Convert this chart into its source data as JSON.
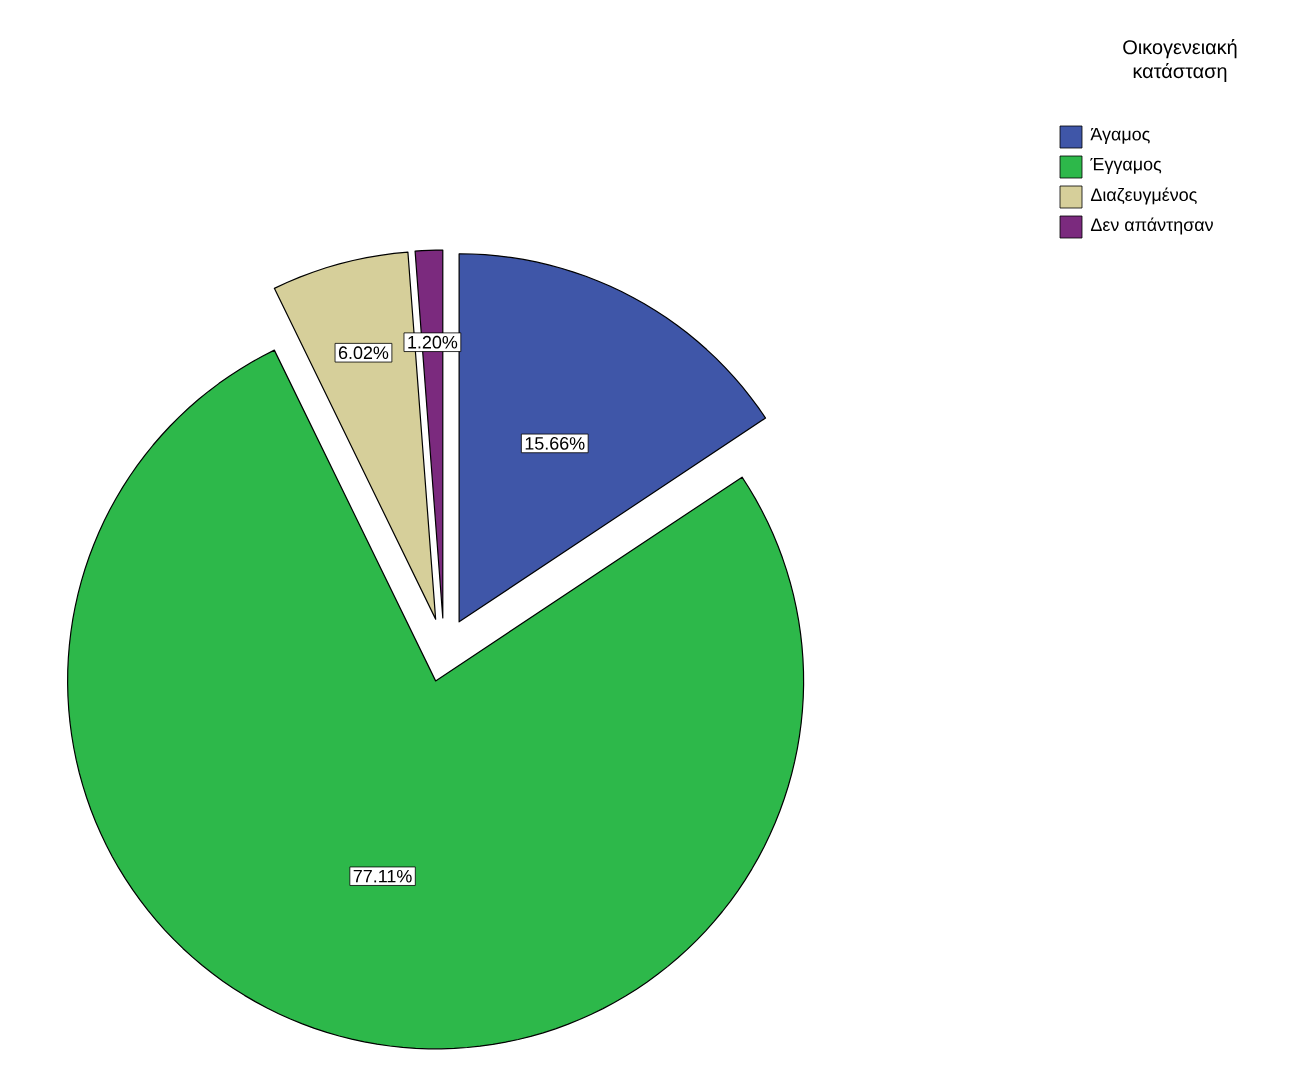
{
  "chart_data": {
    "type": "pie",
    "legend_title": "Οικογενειακή κατάσταση",
    "categories": [
      "Άγαμος",
      "Έγγαμος",
      "Διαζευγμένος",
      "Δεν απάντησαν"
    ],
    "values": [
      15.66,
      77.11,
      6.02,
      1.2
    ],
    "colors": [
      "#3f56a8",
      "#2db84a",
      "#d6cf9a",
      "#7b2a7e"
    ],
    "value_labels": [
      "15.66%",
      "77.11%",
      "6.02%",
      "1.20%"
    ],
    "legend": "top right"
  }
}
